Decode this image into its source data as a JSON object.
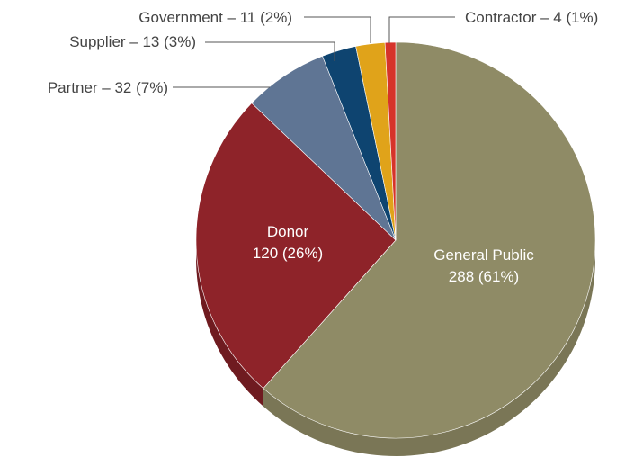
{
  "chart_data": {
    "type": "pie",
    "title": "",
    "slices": [
      {
        "label": "General Public",
        "value": 288,
        "percent": "61%",
        "text": [
          "General Public",
          "288 (61%)"
        ],
        "label_position": "inside",
        "color": "#8f8b66",
        "side_color": "#7a7656"
      },
      {
        "label": "Donor",
        "value": 120,
        "percent": "26%",
        "text": [
          "Donor",
          "120 (26%)"
        ],
        "label_position": "inside",
        "color": "#8e2329",
        "side_color": "#6f1b20"
      },
      {
        "label": "Partner",
        "value": 32,
        "percent": "7%",
        "text": [
          "Partner – 32 (7%)"
        ],
        "label_position": "outside-left",
        "color": "#5f7594",
        "side_color": "#4b5e78"
      },
      {
        "label": "Supplier",
        "value": 13,
        "percent": "3%",
        "text": [
          "Supplier – 13 (3%)"
        ],
        "label_position": "outside-left",
        "color": "#0e4470",
        "side_color": "#0a3457"
      },
      {
        "label": "Government",
        "value": 11,
        "percent": "2%",
        "text": [
          "Government – 11 (2%)"
        ],
        "label_position": "outside-left",
        "color": "#e0a31a",
        "side_color": "#b38214"
      },
      {
        "label": "Contractor",
        "value": 4,
        "percent": "1%",
        "text": [
          "Contractor – 4 (1%)"
        ],
        "label_position": "outside-right",
        "color": "#d6332a",
        "side_color": "#aa2821"
      }
    ],
    "start_angle_deg": 0,
    "direction": "clockwise",
    "style": "3d"
  }
}
